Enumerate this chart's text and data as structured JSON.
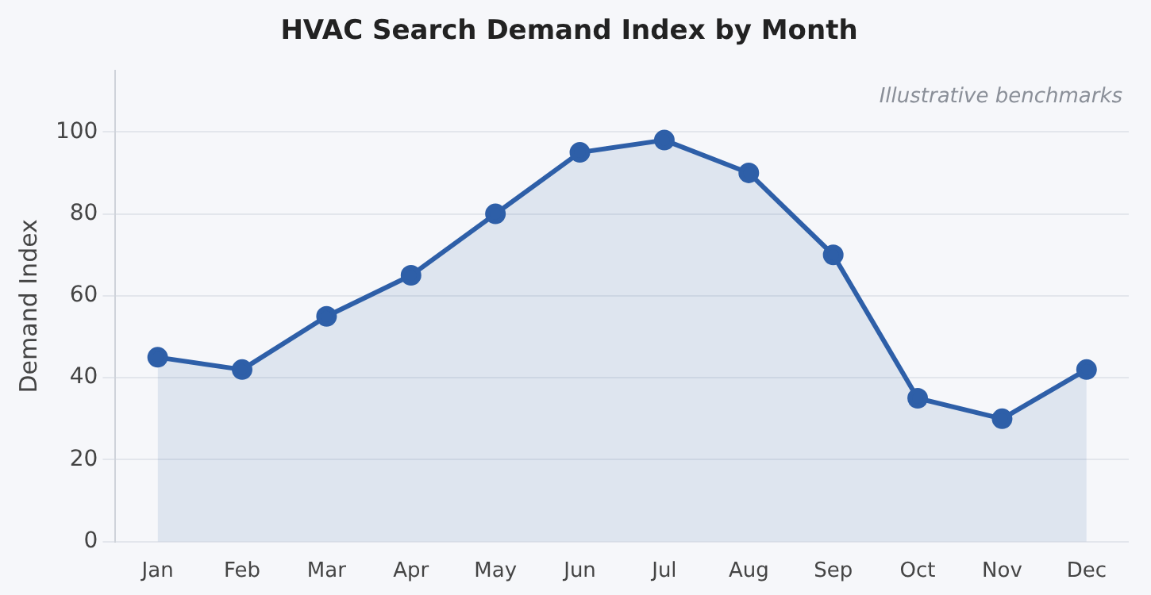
{
  "chart_data": {
    "type": "area",
    "title": "HVAC Search Demand Index by Month",
    "ylabel": "Demand Index",
    "annotations": [
      "Illustrative benchmarks"
    ],
    "categories": [
      "Jan",
      "Feb",
      "Mar",
      "Apr",
      "May",
      "Jun",
      "Jul",
      "Aug",
      "Sep",
      "Oct",
      "Nov",
      "Dec"
    ],
    "series": [
      {
        "color": "#2e5fa8",
        "values": [
          45,
          42,
          55,
          65,
          80,
          95,
          98,
          90,
          70,
          35,
          30,
          42
        ]
      }
    ],
    "ylim": [
      0,
      115
    ],
    "yticks": [
      0,
      20,
      40,
      60,
      80,
      100
    ],
    "grid": "y",
    "legend": false,
    "marker": "circle",
    "line_style": "solid"
  }
}
